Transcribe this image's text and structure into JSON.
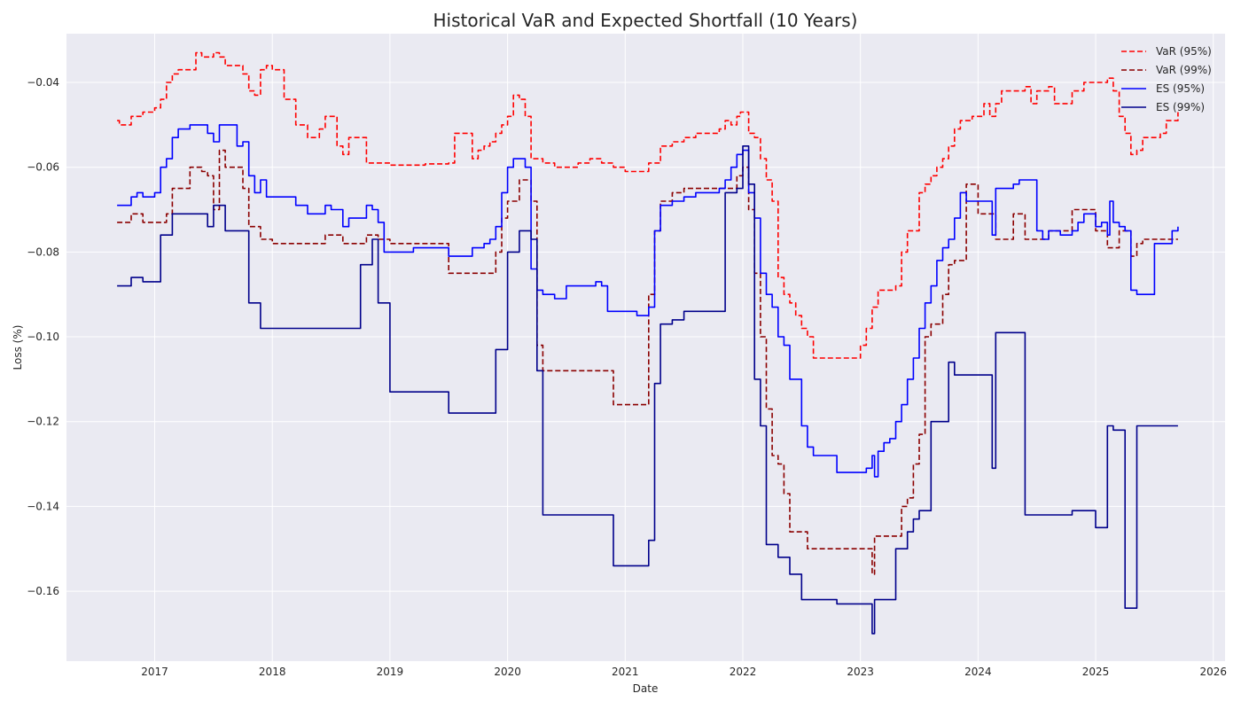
{
  "chart_data": {
    "type": "line",
    "title": "Historical VaR and Expected Shortfall (10 Years)",
    "xlabel": "Date",
    "ylabel": "Loss (%)",
    "xlim": [
      2016.25,
      2026.1
    ],
    "ylim": [
      -0.1765,
      -0.0285
    ],
    "x_ticks": [
      2017,
      2018,
      2019,
      2020,
      2021,
      2022,
      2023,
      2024,
      2025,
      2026
    ],
    "x_tick_labels": [
      "2017",
      "2018",
      "2019",
      "2020",
      "2021",
      "2022",
      "2023",
      "2024",
      "2025",
      "2026"
    ],
    "y_ticks": [
      -0.16,
      -0.14,
      -0.12,
      -0.1,
      -0.08,
      -0.06,
      -0.04
    ],
    "y_tick_labels": [
      "−0.16",
      "−0.14",
      "−0.12",
      "−0.10",
      "−0.08",
      "−0.06",
      "−0.04"
    ],
    "grid": true,
    "background_color": "#eaeaf2",
    "legend_position": "top-right",
    "series": [
      {
        "name": "VaR (95%)",
        "color": "#ff0000",
        "dash": "dashed",
        "x": [
          2016.68,
          2016.7,
          2016.8,
          2016.9,
          2017.0,
          2017.05,
          2017.1,
          2017.15,
          2017.2,
          2017.3,
          2017.35,
          2017.4,
          2017.5,
          2017.55,
          2017.6,
          2017.7,
          2017.75,
          2017.8,
          2017.85,
          2017.9,
          2017.95,
          2018.0,
          2018.05,
          2018.1,
          2018.2,
          2018.3,
          2018.4,
          2018.45,
          2018.55,
          2018.6,
          2018.65,
          2018.75,
          2018.8,
          2018.9,
          2019.0,
          2019.3,
          2019.5,
          2019.55,
          2019.7,
          2019.75,
          2019.8,
          2019.85,
          2019.9,
          2019.95,
          2020.0,
          2020.05,
          2020.1,
          2020.15,
          2020.2,
          2020.3,
          2020.4,
          2020.5,
          2020.6,
          2020.7,
          2020.8,
          2020.9,
          2021.0,
          2021.1,
          2021.2,
          2021.3,
          2021.4,
          2021.5,
          2021.6,
          2021.7,
          2021.8,
          2021.85,
          2021.9,
          2021.95,
          2021.98,
          2022.05,
          2022.1,
          2022.15,
          2022.2,
          2022.25,
          2022.3,
          2022.35,
          2022.4,
          2022.45,
          2022.5,
          2022.55,
          2022.6,
          2022.8,
          2022.95,
          2023.0,
          2023.05,
          2023.1,
          2023.15,
          2023.2,
          2023.3,
          2023.35,
          2023.4,
          2023.5,
          2023.55,
          2023.6,
          2023.65,
          2023.7,
          2023.75,
          2023.8,
          2023.85,
          2023.9,
          2023.95,
          2024.0,
          2024.05,
          2024.1,
          2024.15,
          2024.2,
          2024.3,
          2024.4,
          2024.45,
          2024.5,
          2024.6,
          2024.65,
          2024.75,
          2024.8,
          2024.9,
          2025.0,
          2025.05,
          2025.1,
          2025.15,
          2025.2,
          2025.25,
          2025.3,
          2025.35,
          2025.4,
          2025.5,
          2025.55,
          2025.6,
          2025.7
        ],
        "y": [
          -0.049,
          -0.05,
          -0.048,
          -0.047,
          -0.046,
          -0.044,
          -0.04,
          -0.038,
          -0.037,
          -0.037,
          -0.033,
          -0.034,
          -0.033,
          -0.034,
          -0.036,
          -0.036,
          -0.038,
          -0.042,
          -0.043,
          -0.037,
          -0.036,
          -0.037,
          -0.037,
          -0.044,
          -0.05,
          -0.053,
          -0.051,
          -0.048,
          -0.055,
          -0.057,
          -0.053,
          -0.053,
          -0.059,
          -0.059,
          -0.0595,
          -0.0592,
          -0.059,
          -0.052,
          -0.058,
          -0.056,
          -0.055,
          -0.054,
          -0.052,
          -0.05,
          -0.048,
          -0.043,
          -0.044,
          -0.048,
          -0.058,
          -0.059,
          -0.06,
          -0.06,
          -0.059,
          -0.058,
          -0.059,
          -0.06,
          -0.061,
          -0.061,
          -0.059,
          -0.055,
          -0.054,
          -0.053,
          -0.052,
          -0.052,
          -0.051,
          -0.049,
          -0.05,
          -0.048,
          -0.047,
          -0.052,
          -0.053,
          -0.058,
          -0.063,
          -0.068,
          -0.086,
          -0.09,
          -0.092,
          -0.095,
          -0.098,
          -0.1,
          -0.105,
          -0.105,
          -0.105,
          -0.102,
          -0.098,
          -0.093,
          -0.089,
          -0.089,
          -0.088,
          -0.08,
          -0.075,
          -0.066,
          -0.064,
          -0.062,
          -0.06,
          -0.058,
          -0.055,
          -0.051,
          -0.049,
          -0.049,
          -0.048,
          -0.048,
          -0.045,
          -0.048,
          -0.045,
          -0.042,
          -0.042,
          -0.041,
          -0.045,
          -0.042,
          -0.041,
          -0.045,
          -0.045,
          -0.042,
          -0.04,
          -0.04,
          -0.04,
          -0.039,
          -0.042,
          -0.048,
          -0.052,
          -0.057,
          -0.056,
          -0.053,
          -0.053,
          -0.052,
          -0.049,
          -0.047
        ]
      },
      {
        "name": "VaR (99%)",
        "color": "#8b0000",
        "dash": "dashed",
        "x": [
          2016.68,
          2016.8,
          2016.9,
          2017.0,
          2017.1,
          2017.15,
          2017.3,
          2017.35,
          2017.4,
          2017.45,
          2017.5,
          2017.55,
          2017.6,
          2017.75,
          2017.8,
          2017.9,
          2018.0,
          2018.2,
          2018.4,
          2018.45,
          2018.55,
          2018.6,
          2018.75,
          2018.8,
          2018.9,
          2019.0,
          2019.3,
          2019.45,
          2019.5,
          2019.7,
          2019.8,
          2019.85,
          2019.9,
          2019.95,
          2020.0,
          2020.1,
          2020.15,
          2020.2,
          2020.25,
          2020.3,
          2020.5,
          2020.7,
          2020.85,
          2020.9,
          2021.0,
          2021.15,
          2021.2,
          2021.25,
          2021.3,
          2021.4,
          2021.5,
          2021.6,
          2021.8,
          2021.95,
          2022.0,
          2022.05,
          2022.1,
          2022.15,
          2022.2,
          2022.25,
          2022.3,
          2022.35,
          2022.4,
          2022.5,
          2022.55,
          2022.6,
          2022.8,
          2022.95,
          2023.0,
          2023.05,
          2023.1,
          2023.12,
          2023.15,
          2023.3,
          2023.35,
          2023.4,
          2023.45,
          2023.5,
          2023.55,
          2023.6,
          2023.7,
          2023.75,
          2023.8,
          2023.85,
          2023.9,
          2024.0,
          2024.1,
          2024.12,
          2024.15,
          2024.3,
          2024.4,
          2024.5,
          2024.6,
          2024.7,
          2024.8,
          2024.9,
          2025.0,
          2025.1,
          2025.15,
          2025.2,
          2025.25,
          2025.3,
          2025.35,
          2025.4,
          2025.5,
          2025.7
        ],
        "y": [
          -0.073,
          -0.071,
          -0.073,
          -0.073,
          -0.071,
          -0.065,
          -0.06,
          -0.06,
          -0.061,
          -0.062,
          -0.07,
          -0.056,
          -0.06,
          -0.065,
          -0.074,
          -0.077,
          -0.078,
          -0.078,
          -0.078,
          -0.076,
          -0.076,
          -0.078,
          -0.078,
          -0.076,
          -0.077,
          -0.078,
          -0.078,
          -0.078,
          -0.085,
          -0.085,
          -0.085,
          -0.085,
          -0.08,
          -0.072,
          -0.068,
          -0.063,
          -0.063,
          -0.068,
          -0.102,
          -0.108,
          -0.108,
          -0.108,
          -0.108,
          -0.116,
          -0.116,
          -0.116,
          -0.09,
          -0.075,
          -0.068,
          -0.066,
          -0.065,
          -0.065,
          -0.065,
          -0.062,
          -0.06,
          -0.07,
          -0.085,
          -0.1,
          -0.117,
          -0.128,
          -0.13,
          -0.137,
          -0.146,
          -0.146,
          -0.15,
          -0.15,
          -0.15,
          -0.15,
          -0.15,
          -0.15,
          -0.156,
          -0.147,
          -0.147,
          -0.147,
          -0.14,
          -0.138,
          -0.13,
          -0.123,
          -0.1,
          -0.097,
          -0.09,
          -0.083,
          -0.082,
          -0.082,
          -0.064,
          -0.071,
          -0.071,
          -0.071,
          -0.077,
          -0.071,
          -0.077,
          -0.077,
          -0.075,
          -0.075,
          -0.07,
          -0.07,
          -0.075,
          -0.079,
          -0.079,
          -0.075,
          -0.075,
          -0.081,
          -0.078,
          -0.077,
          -0.077,
          -0.077
        ]
      },
      {
        "name": "ES (95%)",
        "color": "#0000ff",
        "dash": "solid",
        "x": [
          2016.68,
          2016.75,
          2016.8,
          2016.85,
          2016.9,
          2017.0,
          2017.05,
          2017.1,
          2017.15,
          2017.2,
          2017.3,
          2017.35,
          2017.4,
          2017.45,
          2017.5,
          2017.55,
          2017.6,
          2017.7,
          2017.75,
          2017.8,
          2017.85,
          2017.9,
          2017.95,
          2018.0,
          2018.1,
          2018.2,
          2018.3,
          2018.4,
          2018.45,
          2018.5,
          2018.6,
          2018.65,
          2018.75,
          2018.8,
          2018.85,
          2018.9,
          2018.95,
          2019.0,
          2019.2,
          2019.4,
          2019.5,
          2019.6,
          2019.7,
          2019.75,
          2019.8,
          2019.85,
          2019.9,
          2019.95,
          2020.0,
          2020.05,
          2020.1,
          2020.15,
          2020.2,
          2020.25,
          2020.3,
          2020.4,
          2020.5,
          2020.6,
          2020.75,
          2020.8,
          2020.85,
          2021.0,
          2021.1,
          2021.15,
          2021.2,
          2021.25,
          2021.3,
          2021.4,
          2021.5,
          2021.6,
          2021.7,
          2021.8,
          2021.85,
          2021.9,
          2021.95,
          2022.0,
          2022.05,
          2022.1,
          2022.15,
          2022.2,
          2022.25,
          2022.3,
          2022.35,
          2022.4,
          2022.5,
          2022.55,
          2022.6,
          2022.8,
          2022.95,
          2023.0,
          2023.05,
          2023.1,
          2023.12,
          2023.15,
          2023.2,
          2023.25,
          2023.3,
          2023.35,
          2023.4,
          2023.45,
          2023.5,
          2023.55,
          2023.6,
          2023.65,
          2023.7,
          2023.75,
          2023.8,
          2023.85,
          2023.9,
          2024.0,
          2024.1,
          2024.12,
          2024.15,
          2024.3,
          2024.35,
          2024.4,
          2024.5,
          2024.55,
          2024.6,
          2024.7,
          2024.8,
          2024.85,
          2024.9,
          2024.95,
          2025.0,
          2025.05,
          2025.1,
          2025.12,
          2025.15,
          2025.2,
          2025.25,
          2025.3,
          2025.35,
          2025.5,
          2025.6,
          2025.65,
          2025.7
        ],
        "y": [
          -0.069,
          -0.069,
          -0.067,
          -0.066,
          -0.067,
          -0.066,
          -0.06,
          -0.058,
          -0.053,
          -0.051,
          -0.05,
          -0.05,
          -0.05,
          -0.052,
          -0.054,
          -0.05,
          -0.05,
          -0.055,
          -0.054,
          -0.062,
          -0.066,
          -0.063,
          -0.067,
          -0.067,
          -0.067,
          -0.069,
          -0.071,
          -0.071,
          -0.069,
          -0.07,
          -0.074,
          -0.072,
          -0.072,
          -0.069,
          -0.07,
          -0.073,
          -0.08,
          -0.08,
          -0.079,
          -0.079,
          -0.081,
          -0.081,
          -0.079,
          -0.079,
          -0.078,
          -0.077,
          -0.074,
          -0.066,
          -0.06,
          -0.058,
          -0.058,
          -0.06,
          -0.084,
          -0.089,
          -0.09,
          -0.091,
          -0.088,
          -0.088,
          -0.087,
          -0.088,
          -0.094,
          -0.094,
          -0.095,
          -0.095,
          -0.093,
          -0.075,
          -0.069,
          -0.068,
          -0.067,
          -0.066,
          -0.066,
          -0.065,
          -0.063,
          -0.06,
          -0.057,
          -0.056,
          -0.066,
          -0.072,
          -0.085,
          -0.09,
          -0.093,
          -0.1,
          -0.102,
          -0.11,
          -0.121,
          -0.126,
          -0.128,
          -0.132,
          -0.132,
          -0.132,
          -0.131,
          -0.128,
          -0.133,
          -0.127,
          -0.125,
          -0.124,
          -0.12,
          -0.116,
          -0.11,
          -0.105,
          -0.098,
          -0.092,
          -0.088,
          -0.082,
          -0.079,
          -0.077,
          -0.072,
          -0.066,
          -0.068,
          -0.068,
          -0.068,
          -0.076,
          -0.065,
          -0.064,
          -0.063,
          -0.063,
          -0.075,
          -0.077,
          -0.075,
          -0.076,
          -0.075,
          -0.073,
          -0.071,
          -0.071,
          -0.074,
          -0.073,
          -0.076,
          -0.068,
          -0.073,
          -0.074,
          -0.075,
          -0.089,
          -0.09,
          -0.078,
          -0.078,
          -0.075,
          -0.074
        ]
      },
      {
        "name": "ES (99%)",
        "color": "#00008b",
        "dash": "solid",
        "x": [
          2016.68,
          2016.75,
          2016.8,
          2016.85,
          2016.9,
          2017.0,
          2017.05,
          2017.1,
          2017.15,
          2017.4,
          2017.45,
          2017.5,
          2017.55,
          2017.6,
          2017.75,
          2017.8,
          2017.85,
          2017.9,
          2018.0,
          2018.5,
          2018.7,
          2018.75,
          2018.8,
          2018.85,
          2018.9,
          2018.95,
          2019.0,
          2019.2,
          2019.45,
          2019.5,
          2019.7,
          2019.8,
          2019.85,
          2019.9,
          2019.95,
          2020.0,
          2020.1,
          2020.15,
          2020.2,
          2020.25,
          2020.3,
          2020.5,
          2020.6,
          2020.7,
          2020.85,
          2020.9,
          2021.0,
          2021.1,
          2021.15,
          2021.2,
          2021.25,
          2021.3,
          2021.4,
          2021.5,
          2021.6,
          2021.7,
          2021.8,
          2021.85,
          2021.9,
          2021.95,
          2022.0,
          2022.05,
          2022.1,
          2022.15,
          2022.2,
          2022.25,
          2022.3,
          2022.35,
          2022.4,
          2022.5,
          2022.55,
          2022.6,
          2022.8,
          2022.95,
          2023.0,
          2023.05,
          2023.1,
          2023.12,
          2023.15,
          2023.2,
          2023.3,
          2023.35,
          2023.4,
          2023.45,
          2023.5,
          2023.55,
          2023.6,
          2023.65,
          2023.7,
          2023.75,
          2023.8,
          2023.85,
          2023.9,
          2024.0,
          2024.1,
          2024.12,
          2024.15,
          2024.3,
          2024.35,
          2024.4,
          2024.5,
          2024.6,
          2024.7,
          2024.8,
          2024.9,
          2025.0,
          2025.05,
          2025.1,
          2025.15,
          2025.2,
          2025.25,
          2025.3,
          2025.35,
          2025.5,
          2025.7
        ],
        "y": [
          -0.088,
          -0.088,
          -0.086,
          -0.086,
          -0.087,
          -0.087,
          -0.076,
          -0.076,
          -0.071,
          -0.071,
          -0.074,
          -0.069,
          -0.069,
          -0.075,
          -0.075,
          -0.092,
          -0.092,
          -0.098,
          -0.098,
          -0.098,
          -0.098,
          -0.083,
          -0.083,
          -0.077,
          -0.092,
          -0.092,
          -0.113,
          -0.113,
          -0.113,
          -0.118,
          -0.118,
          -0.118,
          -0.118,
          -0.103,
          -0.103,
          -0.08,
          -0.075,
          -0.075,
          -0.077,
          -0.108,
          -0.142,
          -0.142,
          -0.142,
          -0.142,
          -0.142,
          -0.154,
          -0.154,
          -0.154,
          -0.154,
          -0.148,
          -0.111,
          -0.097,
          -0.096,
          -0.094,
          -0.094,
          -0.094,
          -0.094,
          -0.066,
          -0.066,
          -0.065,
          -0.055,
          -0.064,
          -0.11,
          -0.121,
          -0.149,
          -0.149,
          -0.152,
          -0.152,
          -0.156,
          -0.162,
          -0.162,
          -0.162,
          -0.163,
          -0.163,
          -0.163,
          -0.163,
          -0.17,
          -0.162,
          -0.162,
          -0.162,
          -0.15,
          -0.15,
          -0.146,
          -0.143,
          -0.141,
          -0.141,
          -0.12,
          -0.12,
          -0.12,
          -0.106,
          -0.109,
          -0.109,
          -0.109,
          -0.109,
          -0.109,
          -0.131,
          -0.099,
          -0.099,
          -0.099,
          -0.142,
          -0.142,
          -0.142,
          -0.142,
          -0.141,
          -0.141,
          -0.145,
          -0.145,
          -0.121,
          -0.122,
          -0.122,
          -0.164,
          -0.164,
          -0.121,
          -0.121,
          -0.121
        ]
      }
    ]
  }
}
